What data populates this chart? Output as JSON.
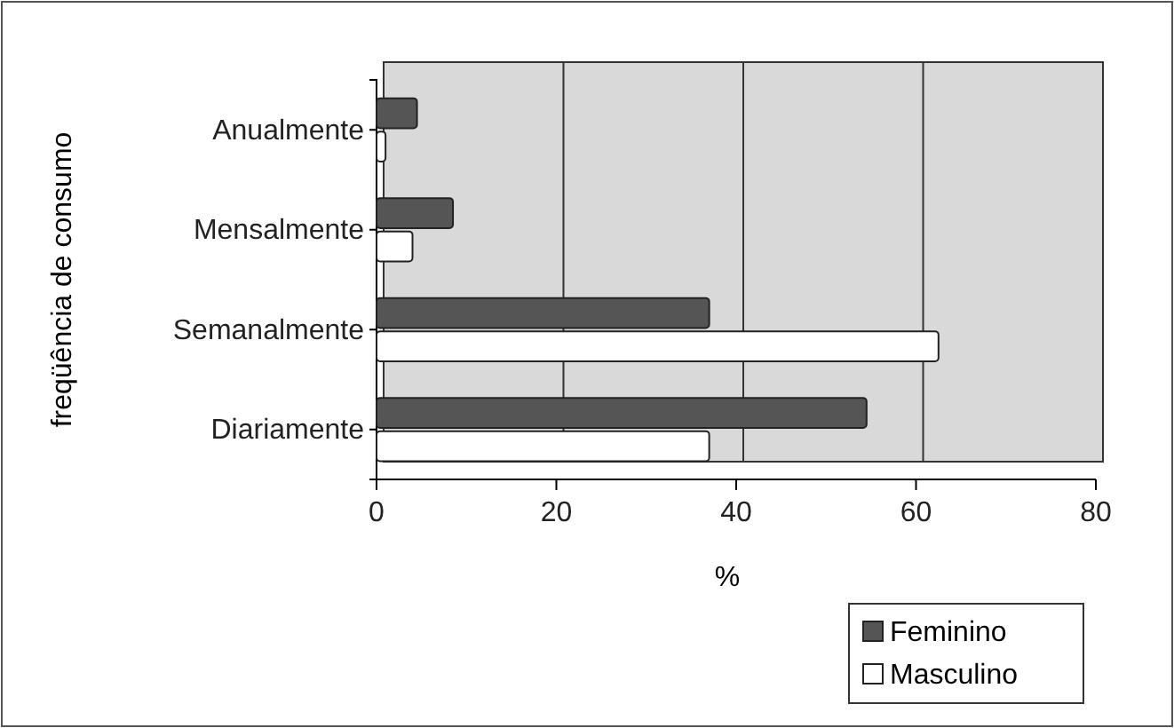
{
  "chart_data": {
    "type": "bar",
    "orientation": "horizontal",
    "categories": [
      "Anualmente",
      "Mensalmente",
      "Semanalmente",
      "Diariamente"
    ],
    "series": [
      {
        "name": "Feminino",
        "color": "#555555",
        "values": [
          4.5,
          8.5,
          37,
          54.5
        ]
      },
      {
        "name": "Masculino",
        "color": "#ffffff",
        "values": [
          1,
          4,
          62.5,
          37
        ]
      }
    ],
    "xlim": [
      0,
      80
    ],
    "xticks": [
      0,
      20,
      40,
      60,
      80
    ],
    "xlabel": "%",
    "ylabel": "freqüência de consumo",
    "grid": "x",
    "legend": "bottom right"
  }
}
